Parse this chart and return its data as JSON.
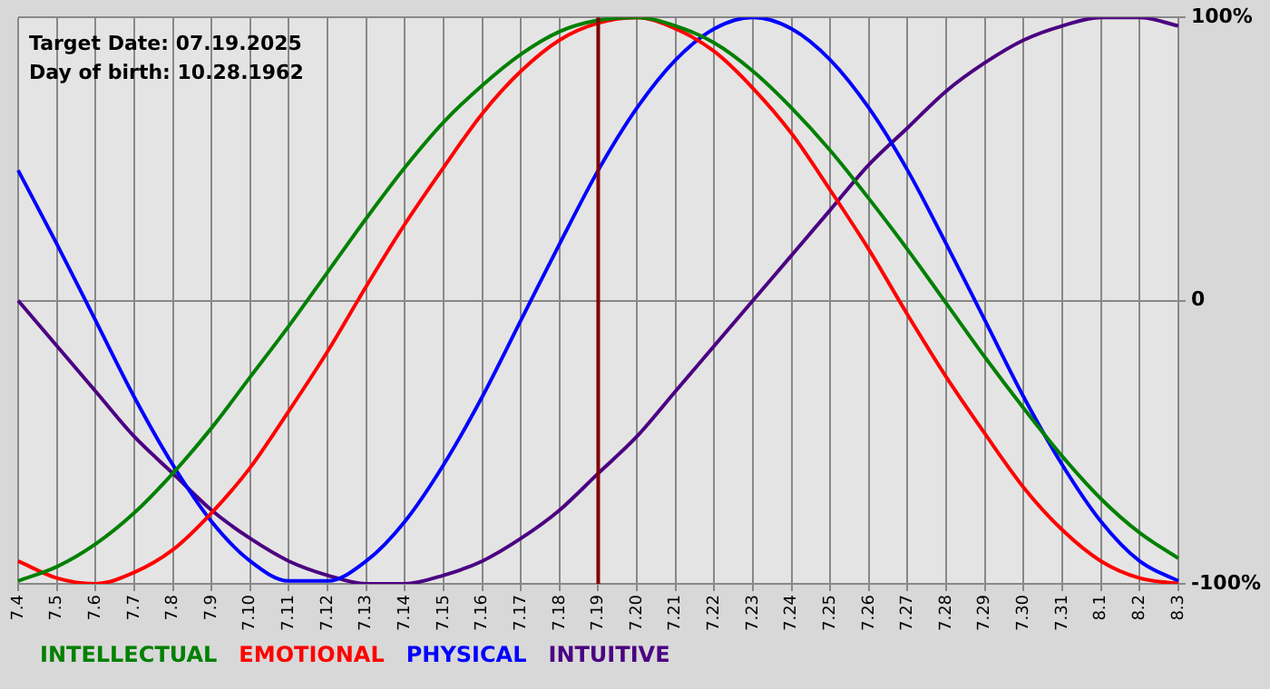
{
  "chart_data": {
    "type": "line",
    "categories": [
      "7.4",
      "7.5",
      "7.6",
      "7.7",
      "7.8",
      "7.9",
      "7.10",
      "7.11",
      "7.12",
      "7.13",
      "7.14",
      "7.15",
      "7.16",
      "7.17",
      "7.18",
      "7.19",
      "7.20",
      "7.21",
      "7.22",
      "7.23",
      "7.24",
      "7.25",
      "7.26",
      "7.27",
      "7.28",
      "7.29",
      "7.30",
      "7.31",
      "8.1",
      "8.2",
      "8.3"
    ],
    "series": [
      {
        "name": "INTELLECTUAL",
        "color": "#008000",
        "values": [
          -99,
          -94,
          -86,
          -75,
          -61,
          -45,
          -27,
          -9,
          10,
          29,
          47,
          63,
          76,
          87,
          95,
          99,
          100,
          97,
          91,
          81,
          68,
          53,
          36,
          18,
          -1,
          -20,
          -38,
          -55,
          -70,
          -82,
          -91
        ]
      },
      {
        "name": "EMOTIONAL",
        "color": "#ff0000",
        "values": [
          -92,
          -98,
          -100,
          -96,
          -88,
          -75,
          -59,
          -39,
          -18,
          5,
          27,
          47,
          66,
          81,
          92,
          98,
          100,
          96,
          88,
          75,
          59,
          39,
          18,
          -5,
          -27,
          -47,
          -66,
          -81,
          -92,
          -98,
          -100
        ]
      },
      {
        "name": "PHYSICAL",
        "color": "#0000ff",
        "values": [
          46,
          20,
          -7,
          -34,
          -58,
          -78,
          -92,
          -99,
          -99,
          -92,
          -78,
          -58,
          -34,
          -7,
          20,
          46,
          68,
          85,
          96,
          100,
          96,
          85,
          68,
          46,
          20,
          -7,
          -34,
          -58,
          -78,
          -92,
          -99
        ]
      },
      {
        "name": "INTUITIVE",
        "color": "#4b0082",
        "values": [
          0,
          -16,
          -32,
          -48,
          -61,
          -74,
          -84,
          -92,
          -97,
          -100,
          -100,
          -97,
          -92,
          -84,
          -74,
          -61,
          -48,
          -32,
          -16,
          0,
          16,
          32,
          48,
          61,
          74,
          84,
          92,
          97,
          100,
          100,
          97
        ]
      }
    ],
    "ylim": [
      -100,
      100
    ],
    "yticks": [
      {
        "value": -100,
        "label": "-100%"
      },
      0,
      {
        "value": 100,
        "label": "100%"
      }
    ],
    "ref_lines": [
      {
        "axis": "x",
        "value": "7.19",
        "color": "#800000"
      }
    ],
    "annotations": [
      "Target Date: 07.19.2025",
      "Day of birth: 10.28.1962"
    ],
    "grid": true,
    "legend": "bottom",
    "marker": "none",
    "line_style": "solid"
  }
}
